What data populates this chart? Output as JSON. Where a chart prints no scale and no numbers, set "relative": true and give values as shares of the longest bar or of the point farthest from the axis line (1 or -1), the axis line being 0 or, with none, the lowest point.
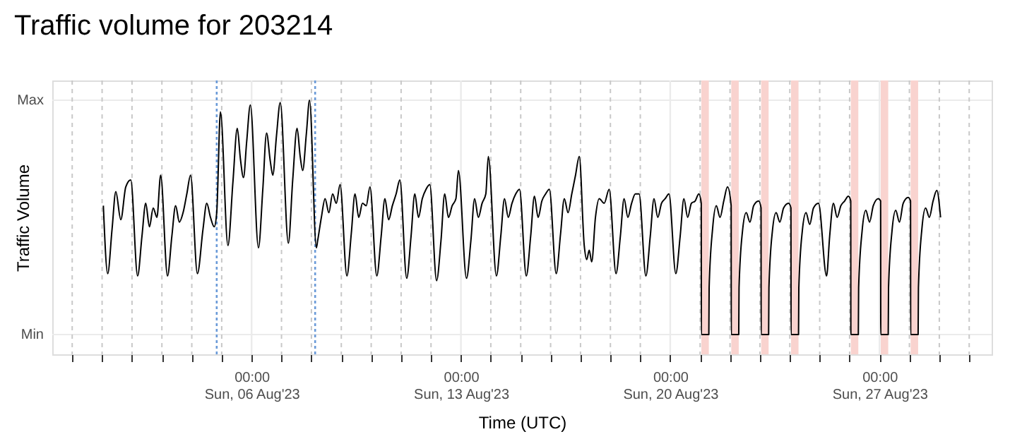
{
  "chart_data": {
    "type": "line",
    "title": "Traffic volume for 203214",
    "xlabel": "Time (UTC)",
    "ylabel": "Traffic Volume",
    "grid": true,
    "xlim": [
      "2023-07-30T08:00",
      "2023-08-30T18:00"
    ],
    "relative": true,
    "annotations": [
      "Max",
      "Min"
    ],
    "xticks": [
      {
        "value": "2023-07-31T00:00",
        "label": null
      },
      {
        "value": "2023-08-01T00:00",
        "label": null
      },
      {
        "value": "2023-08-02T00:00",
        "label": null
      },
      {
        "value": "2023-08-03T00:00",
        "label": null
      },
      {
        "value": "2023-08-04T00:00",
        "label": null
      },
      {
        "value": "2023-08-05T00:00",
        "label": null
      },
      {
        "value": "2023-08-06T00:00",
        "label": "00:00\nSun, 06 Aug'23"
      },
      {
        "value": "2023-08-07T00:00",
        "label": null
      },
      {
        "value": "2023-08-08T00:00",
        "label": null
      },
      {
        "value": "2023-08-09T00:00",
        "label": null
      },
      {
        "value": "2023-08-10T00:00",
        "label": null
      },
      {
        "value": "2023-08-11T00:00",
        "label": null
      },
      {
        "value": "2023-08-12T00:00",
        "label": null
      },
      {
        "value": "2023-08-13T00:00",
        "label": "00:00\nSun, 13 Aug'23"
      },
      {
        "value": "2023-08-14T00:00",
        "label": null
      },
      {
        "value": "2023-08-15T00:00",
        "label": null
      },
      {
        "value": "2023-08-16T00:00",
        "label": null
      },
      {
        "value": "2023-08-17T00:00",
        "label": null
      },
      {
        "value": "2023-08-18T00:00",
        "label": null
      },
      {
        "value": "2023-08-19T00:00",
        "label": null
      },
      {
        "value": "2023-08-20T00:00",
        "label": "00:00\nSun, 20 Aug'23"
      },
      {
        "value": "2023-08-21T00:00",
        "label": null
      },
      {
        "value": "2023-08-22T00:00",
        "label": null
      },
      {
        "value": "2023-08-23T00:00",
        "label": null
      },
      {
        "value": "2023-08-24T00:00",
        "label": null
      },
      {
        "value": "2023-08-25T00:00",
        "label": null
      },
      {
        "value": "2023-08-26T00:00",
        "label": null
      },
      {
        "value": "2023-08-27T00:00",
        "label": "00:00\nSun, 27 Aug'23"
      },
      {
        "value": "2023-08-28T00:00",
        "label": null
      },
      {
        "value": "2023-08-29T00:00",
        "label": null
      },
      {
        "value": "2023-08-30T00:00",
        "label": null
      }
    ],
    "ref_lines": [
      {
        "axis": "x",
        "value": "2023-08-04T20:00",
        "color": "#6a9ad8",
        "line_style": "dotted"
      },
      {
        "axis": "x",
        "value": "2023-08-08T03:00",
        "color": "#6a9ad8",
        "line_style": "dotted"
      }
    ],
    "bands": [
      {
        "axis": "x",
        "from": "2023-08-21T01:00",
        "to": "2023-08-21T07:00",
        "color": "#f9d3cf"
      },
      {
        "axis": "x",
        "from": "2023-08-22T01:00",
        "to": "2023-08-22T07:00",
        "color": "#f9d3cf"
      },
      {
        "axis": "x",
        "from": "2023-08-23T01:00",
        "to": "2023-08-23T07:00",
        "color": "#f9d3cf"
      },
      {
        "axis": "x",
        "from": "2023-08-24T01:00",
        "to": "2023-08-24T07:00",
        "color": "#f9d3cf"
      },
      {
        "axis": "x",
        "from": "2023-08-26T01:00",
        "to": "2023-08-26T07:00",
        "color": "#f9d3cf"
      },
      {
        "axis": "x",
        "from": "2023-08-27T01:00",
        "to": "2023-08-27T07:00",
        "color": "#f9d3cf"
      },
      {
        "axis": "x",
        "from": "2023-08-28T01:00",
        "to": "2023-08-28T07:00",
        "color": "#f9d3cf"
      }
    ],
    "series": [
      {
        "color": "#000000",
        "line_style": "solid",
        "x": [
          "2023-08-01T01:00",
          "2023-08-01T04:30",
          "2023-08-01T08:00",
          "2023-08-01T11:00",
          "2023-08-01T15:00",
          "2023-08-01T19:00",
          "2023-08-01T23:00",
          "2023-08-02T04:30",
          "2023-08-02T08:00",
          "2023-08-02T11:00",
          "2023-08-02T14:00",
          "2023-08-02T17:00",
          "2023-08-02T20:00",
          "2023-08-02T23:00",
          "2023-08-03T04:30",
          "2023-08-03T08:00",
          "2023-08-03T11:00",
          "2023-08-03T14:00",
          "2023-08-03T17:00",
          "2023-08-03T20:00",
          "2023-08-03T23:00",
          "2023-08-04T04:30",
          "2023-08-04T09:00",
          "2023-08-04T12:00",
          "2023-08-04T15:00",
          "2023-08-04T18:00",
          "2023-08-04T20:00",
          "2023-08-04T23:00",
          "2023-08-05T05:00",
          "2023-08-05T09:00",
          "2023-08-05T12:30",
          "2023-08-05T15:00",
          "2023-08-05T17:30",
          "2023-08-05T20:00",
          "2023-08-05T23:00",
          "2023-08-06T05:30",
          "2023-08-06T09:00",
          "2023-08-06T12:00",
          "2023-08-06T15:00",
          "2023-08-06T17:00",
          "2023-08-06T20:00",
          "2023-08-06T23:00",
          "2023-08-07T05:30",
          "2023-08-07T09:00",
          "2023-08-07T12:30",
          "2023-08-07T15:00",
          "2023-08-07T17:00",
          "2023-08-07T20:00",
          "2023-08-07T22:30",
          "2023-08-08T04:00",
          "2023-08-08T05:00",
          "2023-08-08T08:00",
          "2023-08-08T11:00",
          "2023-08-08T14:00",
          "2023-08-08T17:00",
          "2023-08-08T20:00",
          "2023-08-08T23:00",
          "2023-08-09T04:30",
          "2023-08-09T08:00",
          "2023-08-09T11:00",
          "2023-08-09T14:00",
          "2023-08-09T17:00",
          "2023-08-09T20:00",
          "2023-08-09T23:00",
          "2023-08-10T04:30",
          "2023-08-10T08:00",
          "2023-08-10T11:00",
          "2023-08-10T14:00",
          "2023-08-10T17:00",
          "2023-08-10T20:00",
          "2023-08-10T23:00",
          "2023-08-11T04:30",
          "2023-08-11T08:00",
          "2023-08-11T11:00",
          "2023-08-11T14:00",
          "2023-08-11T17:00",
          "2023-08-11T20:00",
          "2023-08-11T23:00",
          "2023-08-12T04:30",
          "2023-08-12T08:00",
          "2023-08-12T11:00",
          "2023-08-12T14:00",
          "2023-08-12T17:00",
          "2023-08-12T20:00",
          "2023-08-12T22:00",
          "2023-08-13T04:30",
          "2023-08-13T08:00",
          "2023-08-13T11:00",
          "2023-08-13T14:00",
          "2023-08-13T17:00",
          "2023-08-13T20:00",
          "2023-08-13T22:00",
          "2023-08-14T04:30",
          "2023-08-14T08:00",
          "2023-08-14T11:00",
          "2023-08-14T14:00",
          "2023-08-14T17:00",
          "2023-08-14T20:00",
          "2023-08-14T23:00",
          "2023-08-15T04:30",
          "2023-08-15T08:00",
          "2023-08-15T11:00",
          "2023-08-15T14:00",
          "2023-08-15T17:00",
          "2023-08-15T20:00",
          "2023-08-15T23:00",
          "2023-08-16T04:30",
          "2023-08-16T08:00",
          "2023-08-16T11:00",
          "2023-08-16T14:00",
          "2023-08-16T17:00",
          "2023-08-16T20:00",
          "2023-08-16T23:00",
          "2023-08-17T03:00",
          "2023-08-17T05:00",
          "2023-08-17T07:00",
          "2023-08-17T09:00",
          "2023-08-17T12:00",
          "2023-08-17T15:00",
          "2023-08-17T19:00",
          "2023-08-17T23:00",
          "2023-08-18T04:30",
          "2023-08-18T08:00",
          "2023-08-18T11:00",
          "2023-08-18T14:00",
          "2023-08-18T17:00",
          "2023-08-18T20:00",
          "2023-08-18T23:00",
          "2023-08-19T04:30",
          "2023-08-19T08:00",
          "2023-08-19T11:00",
          "2023-08-19T14:00",
          "2023-08-19T17:00",
          "2023-08-19T20:00",
          "2023-08-19T23:00",
          "2023-08-20T04:30",
          "2023-08-20T08:00",
          "2023-08-20T11:00",
          "2023-08-20T14:00",
          "2023-08-20T17:00",
          "2023-08-20T20:00",
          "2023-08-20T23:00",
          "2023-08-21T00:55",
          "2023-08-21T01:00",
          "2023-08-21T07:00",
          "2023-08-21T07:15",
          "2023-08-21T10:00",
          "2023-08-21T13:00",
          "2023-08-21T16:00",
          "2023-08-21T19:00",
          "2023-08-21T22:00",
          "2023-08-22T00:55",
          "2023-08-22T01:00",
          "2023-08-22T07:00",
          "2023-08-22T07:15",
          "2023-08-22T10:00",
          "2023-08-22T13:00",
          "2023-08-22T16:00",
          "2023-08-22T19:00",
          "2023-08-22T23:00",
          "2023-08-23T00:55",
          "2023-08-23T01:00",
          "2023-08-23T07:00",
          "2023-08-23T07:15",
          "2023-08-23T10:00",
          "2023-08-23T13:00",
          "2023-08-23T16:00",
          "2023-08-23T19:00",
          "2023-08-23T23:00",
          "2023-08-24T00:55",
          "2023-08-24T01:00",
          "2023-08-24T07:00",
          "2023-08-24T07:15",
          "2023-08-24T10:00",
          "2023-08-24T13:00",
          "2023-08-24T16:00",
          "2023-08-24T19:00",
          "2023-08-24T23:00",
          "2023-08-25T05:30",
          "2023-08-25T08:00",
          "2023-08-25T11:00",
          "2023-08-25T14:00",
          "2023-08-25T17:00",
          "2023-08-25T20:00",
          "2023-08-25T23:00",
          "2023-08-26T00:55",
          "2023-08-26T01:00",
          "2023-08-26T07:00",
          "2023-08-26T07:15",
          "2023-08-26T10:00",
          "2023-08-26T13:00",
          "2023-08-26T16:00",
          "2023-08-26T19:00",
          "2023-08-26T23:00",
          "2023-08-27T00:55",
          "2023-08-27T01:00",
          "2023-08-27T07:00",
          "2023-08-27T07:15",
          "2023-08-27T10:00",
          "2023-08-27T13:00",
          "2023-08-27T16:00",
          "2023-08-27T19:00",
          "2023-08-27T23:00",
          "2023-08-28T00:55",
          "2023-08-28T01:00",
          "2023-08-28T07:00",
          "2023-08-28T07:15",
          "2023-08-28T10:00",
          "2023-08-28T13:00",
          "2023-08-28T16:00",
          "2023-08-28T19:00",
          "2023-08-28T22:00",
          "2023-08-29T01:00"
        ],
        "values": [
          0.55,
          0.26,
          0.45,
          0.61,
          0.49,
          0.63,
          0.66,
          0.25,
          0.42,
          0.56,
          0.46,
          0.54,
          0.5,
          0.68,
          0.25,
          0.42,
          0.55,
          0.48,
          0.52,
          0.6,
          0.68,
          0.26,
          0.45,
          0.56,
          0.5,
          0.46,
          0.52,
          0.95,
          0.38,
          0.65,
          0.88,
          0.75,
          0.67,
          0.82,
          0.98,
          0.37,
          0.62,
          0.86,
          0.74,
          0.68,
          0.85,
          0.99,
          0.39,
          0.66,
          0.88,
          0.76,
          0.7,
          0.86,
          1,
          0.37,
          0.4,
          0.5,
          0.58,
          0.52,
          0.6,
          0.56,
          0.64,
          0.25,
          0.43,
          0.6,
          0.5,
          0.56,
          0.55,
          0.63,
          0.25,
          0.42,
          0.58,
          0.49,
          0.55,
          0.6,
          0.66,
          0.24,
          0.42,
          0.6,
          0.5,
          0.58,
          0.62,
          0.64,
          0.23,
          0.4,
          0.6,
          0.5,
          0.55,
          0.58,
          0.7,
          0.24,
          0.4,
          0.58,
          0.5,
          0.56,
          0.6,
          0.76,
          0.25,
          0.42,
          0.58,
          0.5,
          0.56,
          0.6,
          0.62,
          0.25,
          0.42,
          0.59,
          0.5,
          0.57,
          0.6,
          0.62,
          0.26,
          0.43,
          0.58,
          0.52,
          0.6,
          0.68,
          0.76,
          0.38,
          0.32,
          0.36,
          0.31,
          0.5,
          0.58,
          0.56,
          0.62,
          0.26,
          0.42,
          0.58,
          0.5,
          0.56,
          0.6,
          0.6,
          0.25,
          0.42,
          0.58,
          0.5,
          0.56,
          0.58,
          0.6,
          0.26,
          0.42,
          0.58,
          0.5,
          0.56,
          0.57,
          0.6,
          0.56,
          0,
          0,
          0.2,
          0.45,
          0.55,
          0.5,
          0.57,
          0.63,
          0.55,
          0,
          0,
          0.2,
          0.44,
          0.52,
          0.48,
          0.55,
          0.57,
          0.54,
          0,
          0,
          0.2,
          0.44,
          0.52,
          0.48,
          0.54,
          0.56,
          0.54,
          0,
          0,
          0.2,
          0.44,
          0.52,
          0.47,
          0.54,
          0.56,
          0.25,
          0.42,
          0.56,
          0.5,
          0.55,
          0.57,
          0.59,
          0.57,
          0,
          0,
          0.2,
          0.44,
          0.53,
          0.48,
          0.55,
          0.58,
          0.57,
          0,
          0,
          0.2,
          0.44,
          0.53,
          0.48,
          0.56,
          0.585,
          0.57,
          0,
          0,
          0.2,
          0.45,
          0.54,
          0.5,
          0.57,
          0.615,
          0.5
        ]
      }
    ]
  }
}
